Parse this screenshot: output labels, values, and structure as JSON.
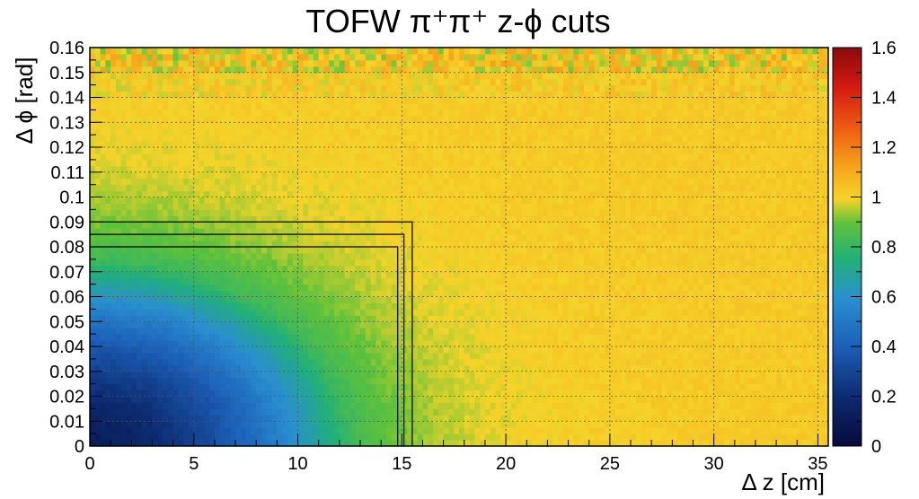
{
  "chart_data": {
    "type": "heatmap",
    "title": "TOFW π⁺π⁺  z-ϕ cuts",
    "xlabel": "Δ z [cm]",
    "ylabel": "Δ ϕ [rad]",
    "xlim": [
      0,
      35.5
    ],
    "ylim": [
      0,
      0.16
    ],
    "x_ticks": [
      0,
      5,
      10,
      15,
      20,
      25,
      30,
      35
    ],
    "y_ticks": [
      0,
      0.01,
      0.02,
      0.03,
      0.04,
      0.05,
      0.06,
      0.07,
      0.08,
      0.09,
      0.1,
      0.11,
      0.12,
      0.13,
      0.14,
      0.15,
      0.16
    ],
    "y_tick_labels": [
      "0",
      "0.01",
      "0.02",
      "0.03",
      "0.04",
      "0.05",
      "0.06",
      "0.07",
      "0.08",
      "0.09",
      "0.1",
      "0.11",
      "0.12",
      "0.13",
      "0.14",
      "0.15",
      "0.16"
    ],
    "grid": true,
    "colorbar": {
      "range": [
        0,
        1.6
      ],
      "ticks": [
        0,
        0.2,
        0.4,
        0.6,
        0.8,
        1,
        1.2,
        1.4,
        1.6
      ],
      "tick_labels": [
        "0",
        "0.2",
        "0.4",
        "0.6",
        "0.8",
        "1",
        "1.2",
        "1.4",
        "1.6"
      ]
    },
    "cut_boxes": [
      {
        "dz": 14.8,
        "dphi": 0.08
      },
      {
        "dz": 15.1,
        "dphi": 0.085
      },
      {
        "dz": 15.5,
        "dphi": 0.09
      }
    ],
    "description_values": {
      "background_level": 1.02,
      "min_at_origin": 0.12,
      "suppression_dz_scale": 12.5,
      "suppression_dphi_scale": 0.075
    }
  }
}
